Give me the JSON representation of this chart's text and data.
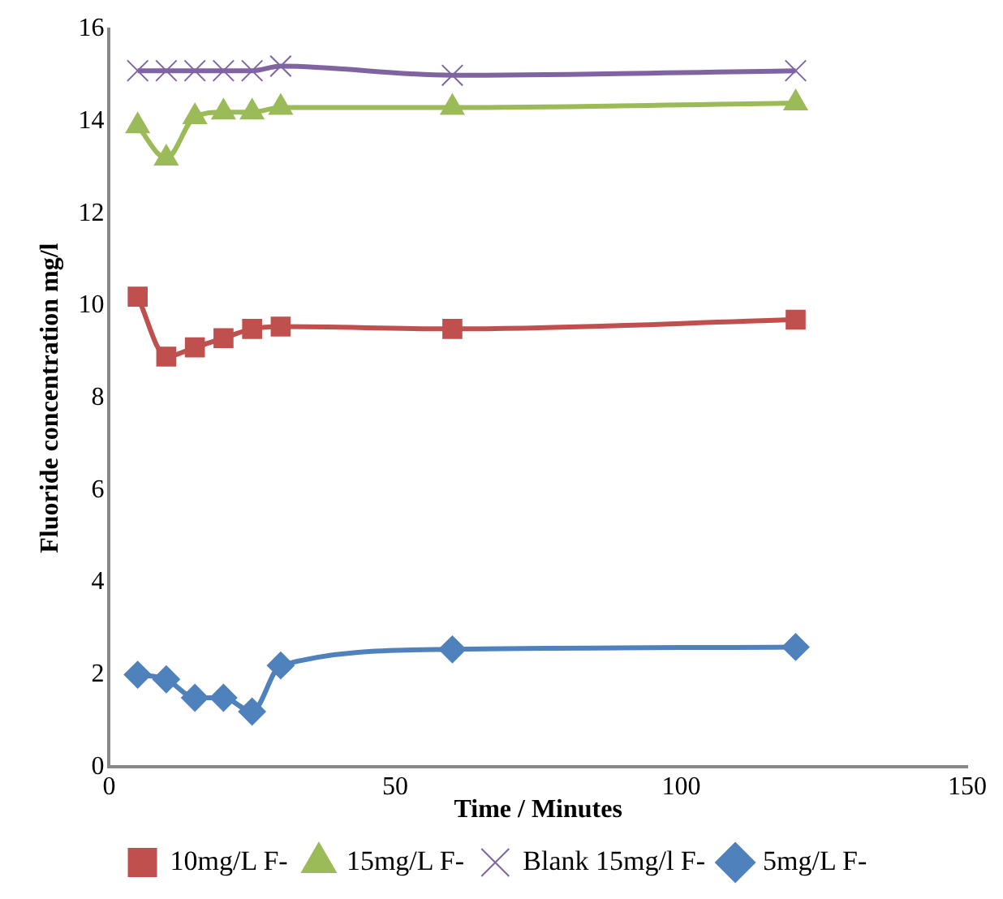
{
  "chart_data": {
    "type": "line",
    "xlabel": "Time / Minutes",
    "ylabel": "Fluoride concentration mg/l",
    "x": [
      5,
      10,
      15,
      20,
      25,
      30,
      60,
      120
    ],
    "xlim": [
      0,
      150
    ],
    "xticks": [
      0,
      50,
      100,
      150
    ],
    "ylim": [
      0,
      16
    ],
    "yticks": [
      0,
      2,
      4,
      6,
      8,
      10,
      12,
      14,
      16
    ],
    "grid": false,
    "legend": "bottom",
    "series": [
      {
        "name": "10mg/L F-",
        "color": "#c0504d",
        "marker": "square",
        "values": [
          10.2,
          8.9,
          9.1,
          9.3,
          9.5,
          9.55,
          9.5,
          9.7
        ]
      },
      {
        "name": "15mg/L F-",
        "color": "#9bbb59",
        "marker": "triangle",
        "values": [
          13.9,
          13.2,
          14.1,
          14.2,
          14.2,
          14.3,
          14.3,
          14.4
        ]
      },
      {
        "name": "Blank 15mg/l F-",
        "color": "#8064a2",
        "marker": "cross",
        "values": [
          15.1,
          15.1,
          15.1,
          15.1,
          15.1,
          15.2,
          15.0,
          15.1
        ]
      },
      {
        "name": "5mg/L F-",
        "color": "#4f81bd",
        "marker": "diamond",
        "values": [
          2.0,
          1.9,
          1.5,
          1.5,
          1.2,
          2.2,
          2.55,
          2.6
        ]
      }
    ]
  }
}
